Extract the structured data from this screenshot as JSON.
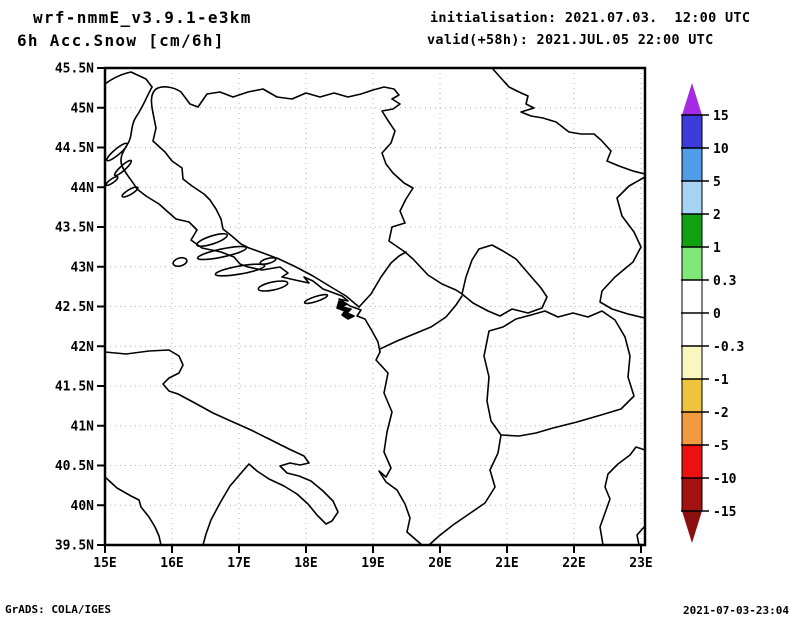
{
  "header": {
    "model": "wrf-nmmE_v3.9.1-e3km",
    "variable": "6h Acc.Snow [cm/6h]",
    "initialisation": "initialisation: 2021.07.03.  12:00 UTC",
    "valid": "valid(+58h): 2021.JUL.05 22:00 UTC"
  },
  "footer": {
    "credit": "GrADS: COLA/IGES",
    "timestamp": "2021-07-03-23:04"
  },
  "map": {
    "lat_ticks": [
      {
        "label": "45.5N",
        "value": 45.5
      },
      {
        "label": "45N",
        "value": 45
      },
      {
        "label": "44.5N",
        "value": 44.5
      },
      {
        "label": "44N",
        "value": 44
      },
      {
        "label": "43.5N",
        "value": 43.5
      },
      {
        "label": "43N",
        "value": 43
      },
      {
        "label": "42.5N",
        "value": 42.5
      },
      {
        "label": "42N",
        "value": 42
      },
      {
        "label": "41.5N",
        "value": 41.5
      },
      {
        "label": "41N",
        "value": 41
      },
      {
        "label": "40.5N",
        "value": 40.5
      },
      {
        "label": "40N",
        "value": 40
      },
      {
        "label": "39.5N",
        "value": 39.5
      }
    ],
    "lon_ticks": [
      {
        "label": "15E",
        "value": 15
      },
      {
        "label": "16E",
        "value": 16
      },
      {
        "label": "17E",
        "value": 17
      },
      {
        "label": "18E",
        "value": 18
      },
      {
        "label": "19E",
        "value": 19
      },
      {
        "label": "20E",
        "value": 20
      },
      {
        "label": "21E",
        "value": 21
      },
      {
        "label": "22E",
        "value": 22
      },
      {
        "label": "23E",
        "value": 23
      }
    ]
  },
  "chart_data": {
    "type": "heatmap",
    "title": "6h Acc.Snow [cm/6h]",
    "model": "wrf-nmmE_v3.9.1-e3km",
    "init_time": "2021.07.03. 12:00 UTC",
    "valid_time": "2021.JUL.05 22:00 UTC (+58h)",
    "region": "Balkans / Adriatic (coastlines and country borders only)",
    "xlim": [
      15,
      23.06
    ],
    "ylim": [
      39.5,
      45.5
    ],
    "x_tick_labels": [
      "15E",
      "16E",
      "17E",
      "18E",
      "19E",
      "20E",
      "21E",
      "22E",
      "23E"
    ],
    "y_tick_labels": [
      "45.5N",
      "45N",
      "44.5N",
      "44N",
      "43.5N",
      "43N",
      "42.5N",
      "42N",
      "41.5N",
      "41N",
      "40.5N",
      "40N",
      "39.5N"
    ],
    "grid": "dotted",
    "values_note": "no shaded snow field visible; entire domain falls in the 0 to 0.3 white bin",
    "colorbar": {
      "labels": [
        "15",
        "10",
        "5",
        "2",
        "1",
        "0.3",
        "0",
        "-0.3",
        "-1",
        "-2",
        "-5",
        "-10",
        "-15"
      ],
      "segment_colors": [
        "#3c3cdc",
        "#4f9ce8",
        "#a8d4f4",
        "#10a010",
        "#80e878",
        "#ffffff",
        "#ffffff",
        "#fbf6c0",
        "#eec43e",
        "#f29a40",
        "#ec1010",
        "#a31210"
      ],
      "arrow_top_color": "#a52ae6",
      "arrow_bottom_color": "#8c0f0f"
    }
  }
}
